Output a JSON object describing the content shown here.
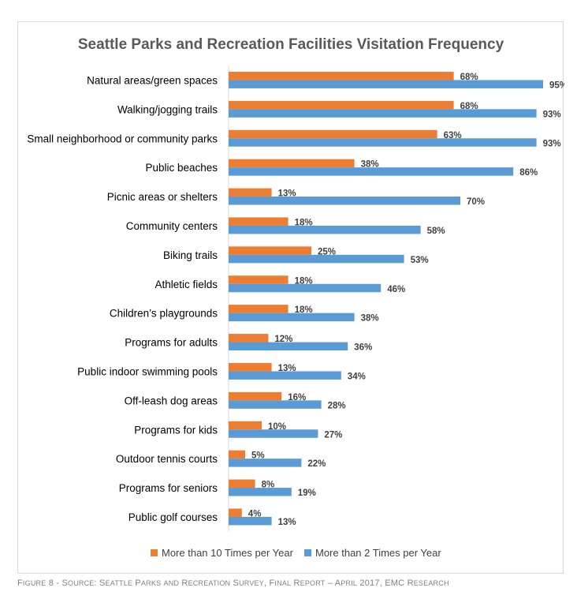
{
  "chart_data": {
    "type": "bar",
    "orientation": "horizontal",
    "title": "Seattle Parks and Recreation Facilities Visitation Frequency",
    "categories": [
      "Natural areas/green spaces",
      "Walking/jogging trails",
      "Small neighborhood or community parks",
      "Public beaches",
      "Picnic areas or shelters",
      "Community centers",
      "Biking trails",
      "Athletic fields",
      "Children’s playgrounds",
      "Programs for adults",
      "Public indoor swimming pools",
      "Off-leash dog areas",
      "Programs for kids",
      "Outdoor tennis courts",
      "Programs for seniors",
      "Public golf courses"
    ],
    "series": [
      {
        "name": "More than 10 Times per Year",
        "color": "#ED7D31",
        "values": [
          68,
          68,
          63,
          38,
          13,
          18,
          25,
          18,
          18,
          12,
          13,
          16,
          10,
          5,
          8,
          4
        ],
        "labels": [
          "68%",
          "68%",
          "63%",
          "38%",
          "13%",
          "18%",
          "25%",
          "18%",
          "18%",
          "12%",
          "13%",
          "16%",
          "10%",
          "5%",
          "8%",
          "4%"
        ]
      },
      {
        "name": "More than 2 Times per Year",
        "color": "#5B9BD5",
        "values": [
          95,
          93,
          93,
          86,
          70,
          58,
          53,
          46,
          38,
          36,
          34,
          28,
          27,
          22,
          19,
          13
        ],
        "labels": [
          "95%",
          "93%",
          "93%",
          "86%",
          "70%",
          "58%",
          "53%",
          "46%",
          "38%",
          "36%",
          "34%",
          "28%",
          "27%",
          "22%",
          "19%",
          "13%"
        ]
      }
    ],
    "xlim": [
      0,
      100
    ],
    "grid": false,
    "legend_position": "bottom"
  },
  "caption": "Figure 8 - Source: Seattle Parks and Recreation Survey, Final Report – April 2017, EMC Research"
}
